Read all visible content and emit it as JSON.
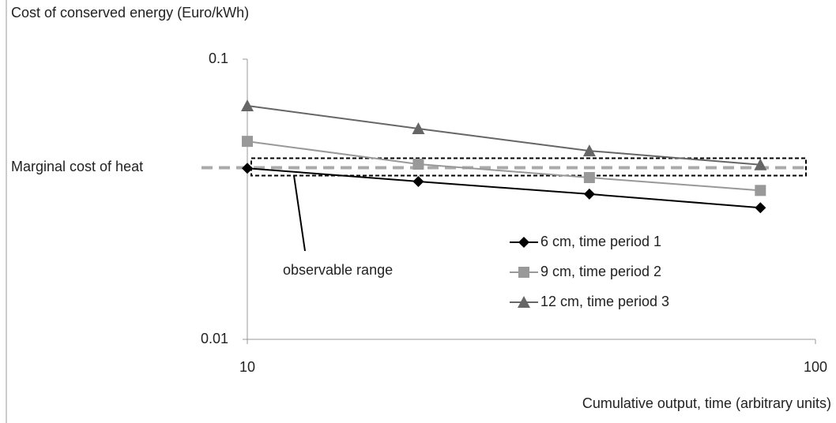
{
  "chart_data": {
    "type": "line",
    "y_axis_label": "Cost of conserved energy (Euro/kWh)",
    "x_axis_label": "Cumulative output, time (arbitrary units)",
    "x": [
      10,
      20,
      40,
      80
    ],
    "series": [
      {
        "name": "6 cm, time period 1",
        "color": "#000000",
        "marker": "diamond",
        "values": [
          0.0408,
          0.0366,
          0.033,
          0.0295
        ]
      },
      {
        "name": "9 cm, time period 2",
        "color": "#999999",
        "marker": "square",
        "values": [
          0.0509,
          0.0422,
          0.0378,
          0.034
        ]
      },
      {
        "name": "12 cm, time period 3",
        "color": "#666666",
        "marker": "triangle",
        "values": [
          0.0682,
          0.0565,
          0.0471,
          0.042
        ]
      }
    ],
    "reference_line": {
      "label": "Marginal cost of heat",
      "value": 0.041,
      "color": "#aaaaaa"
    },
    "range_label": "observable range",
    "xlim": [
      10,
      100
    ],
    "ylim": [
      0.01,
      0.1
    ],
    "xticks": [
      10,
      100
    ],
    "yticks": [
      0.01,
      0.1
    ],
    "xscale": "log",
    "yscale": "log",
    "grid": false
  }
}
